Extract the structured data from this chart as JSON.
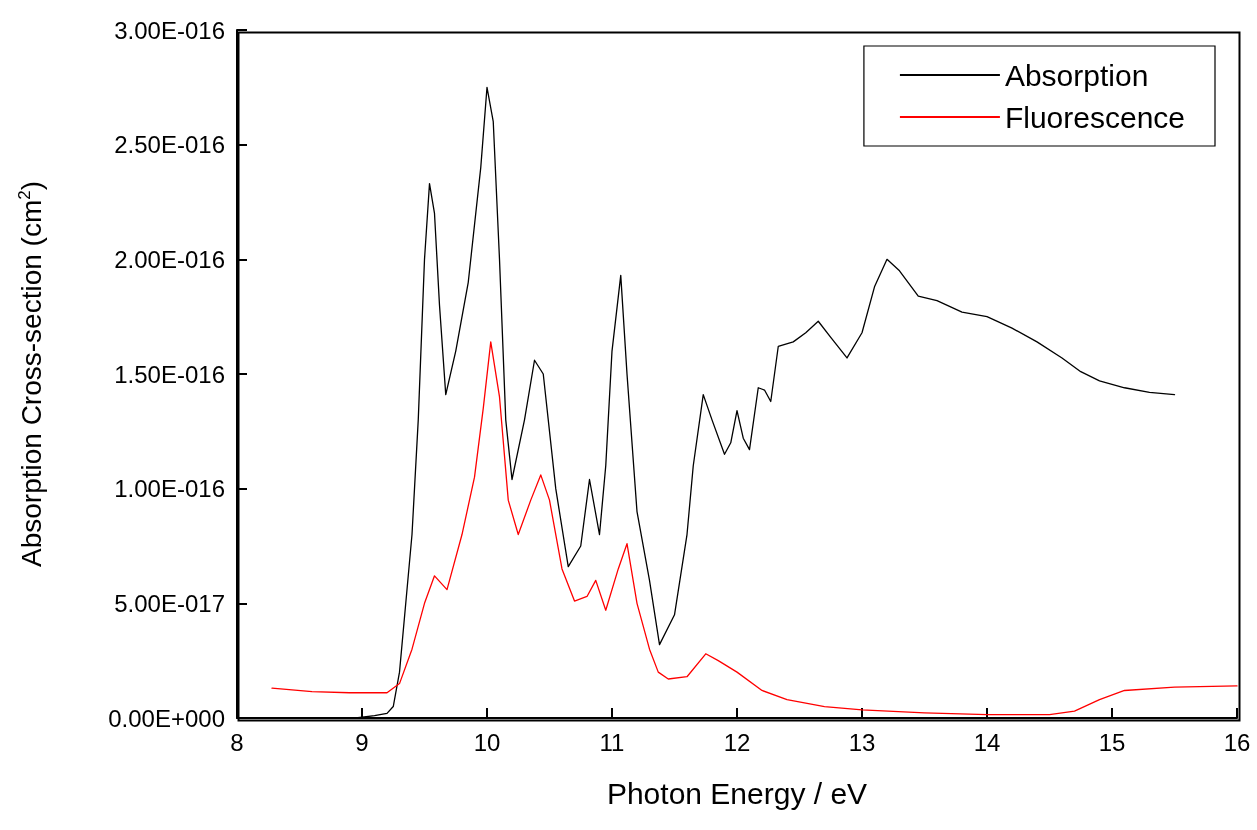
{
  "chart_data": {
    "type": "line",
    "xlabel": "Photon Energy / eV",
    "ylabel": "Absorption Cross-section (cm$^{2}$)",
    "xlim": [
      8,
      16
    ],
    "xticks": [
      8,
      9,
      10,
      11,
      12,
      13,
      14,
      15,
      16
    ],
    "ylim": [
      0,
      3e-16
    ],
    "yticks": [
      {
        "value": 0,
        "label": "0.00E+000"
      },
      {
        "value": 5e-17,
        "label": "5.00E-017"
      },
      {
        "value": 1e-16,
        "label": "1.00E-016"
      },
      {
        "value": 1.5e-16,
        "label": "1.50E-016"
      },
      {
        "value": 2e-16,
        "label": "2.00E-016"
      },
      {
        "value": 2.5e-16,
        "label": "2.50E-016"
      },
      {
        "value": 3e-16,
        "label": "3.00E-016"
      }
    ],
    "grid": false,
    "legend": "top right",
    "marker": "none",
    "line_style": "solid",
    "series": [
      {
        "name": "Absorption",
        "color": "#000000",
        "x": [
          8.95,
          9.1,
          9.2,
          9.25,
          9.3,
          9.4,
          9.45,
          9.5,
          9.54,
          9.58,
          9.62,
          9.67,
          9.75,
          9.85,
          9.95,
          10.0,
          10.05,
          10.1,
          10.15,
          10.2,
          10.3,
          10.38,
          10.45,
          10.55,
          10.65,
          10.75,
          10.82,
          10.9,
          10.95,
          11.0,
          11.07,
          11.12,
          11.2,
          11.3,
          11.38,
          11.5,
          11.6,
          11.65,
          11.73,
          11.8,
          11.9,
          11.95,
          12.0,
          12.05,
          12.1,
          12.17,
          12.22,
          12.27,
          12.33,
          12.45,
          12.55,
          12.65,
          12.75,
          12.88,
          13.0,
          13.1,
          13.2,
          13.3,
          13.45,
          13.6,
          13.8,
          14.0,
          14.2,
          14.4,
          14.6,
          14.75,
          14.9,
          15.1,
          15.3,
          15.5
        ],
        "values": [
          0,
          1e-18,
          2e-18,
          5e-18,
          2e-17,
          8e-17,
          1.3e-16,
          2e-16,
          2.33e-16,
          2.2e-16,
          1.8e-16,
          1.41e-16,
          1.6e-16,
          1.9e-16,
          2.4e-16,
          2.75e-16,
          2.6e-16,
          2e-16,
          1.3e-16,
          1.04e-16,
          1.3e-16,
          1.56e-16,
          1.5e-16,
          1e-16,
          6.6e-17,
          7.5e-17,
          1.04e-16,
          8e-17,
          1.1e-16,
          1.6e-16,
          1.93e-16,
          1.5e-16,
          9e-17,
          6e-17,
          3.2e-17,
          4.5e-17,
          8e-17,
          1.1e-16,
          1.41e-16,
          1.3e-16,
          1.15e-16,
          1.2e-16,
          1.34e-16,
          1.22e-16,
          1.17e-16,
          1.44e-16,
          1.43e-16,
          1.38e-16,
          1.62e-16,
          1.64e-16,
          1.68e-16,
          1.73e-16,
          1.66e-16,
          1.57e-16,
          1.68e-16,
          1.88e-16,
          2e-16,
          1.95e-16,
          1.84e-16,
          1.82e-16,
          1.77e-16,
          1.75e-16,
          1.7e-16,
          1.64e-16,
          1.57e-16,
          1.51e-16,
          1.47e-16,
          1.44e-16,
          1.42e-16,
          1.41e-16
        ]
      },
      {
        "name": "Fluorescence",
        "color": "#ff0000",
        "x": [
          8.28,
          8.6,
          8.9,
          9.2,
          9.3,
          9.4,
          9.5,
          9.58,
          9.68,
          9.8,
          9.9,
          9.97,
          10.03,
          10.1,
          10.17,
          10.25,
          10.35,
          10.43,
          10.5,
          10.6,
          10.7,
          10.8,
          10.87,
          10.95,
          11.05,
          11.12,
          11.2,
          11.3,
          11.37,
          11.45,
          11.6,
          11.75,
          11.85,
          12.0,
          12.2,
          12.4,
          12.7,
          13.0,
          13.5,
          14.0,
          14.5,
          14.7,
          14.9,
          15.1,
          15.5,
          16.0
        ],
        "values": [
          1.3e-17,
          1.15e-17,
          1.1e-17,
          1.1e-17,
          1.5e-17,
          3e-17,
          5e-17,
          6.2e-17,
          5.6e-17,
          8e-17,
          1.05e-16,
          1.35e-16,
          1.64e-16,
          1.4e-16,
          9.5e-17,
          8e-17,
          9.5e-17,
          1.06e-16,
          9.5e-17,
          6.5e-17,
          5.1e-17,
          5.3e-17,
          6e-17,
          4.7e-17,
          6.5e-17,
          7.6e-17,
          5e-17,
          3e-17,
          2e-17,
          1.7e-17,
          1.8e-17,
          2.8e-17,
          2.5e-17,
          2e-17,
          1.2e-17,
          8e-18,
          5e-18,
          3.5e-18,
          2.2e-18,
          1.5e-18,
          1.5e-18,
          3e-18,
          8e-18,
          1.2e-17,
          1.35e-17,
          1.4e-17
        ]
      }
    ]
  }
}
